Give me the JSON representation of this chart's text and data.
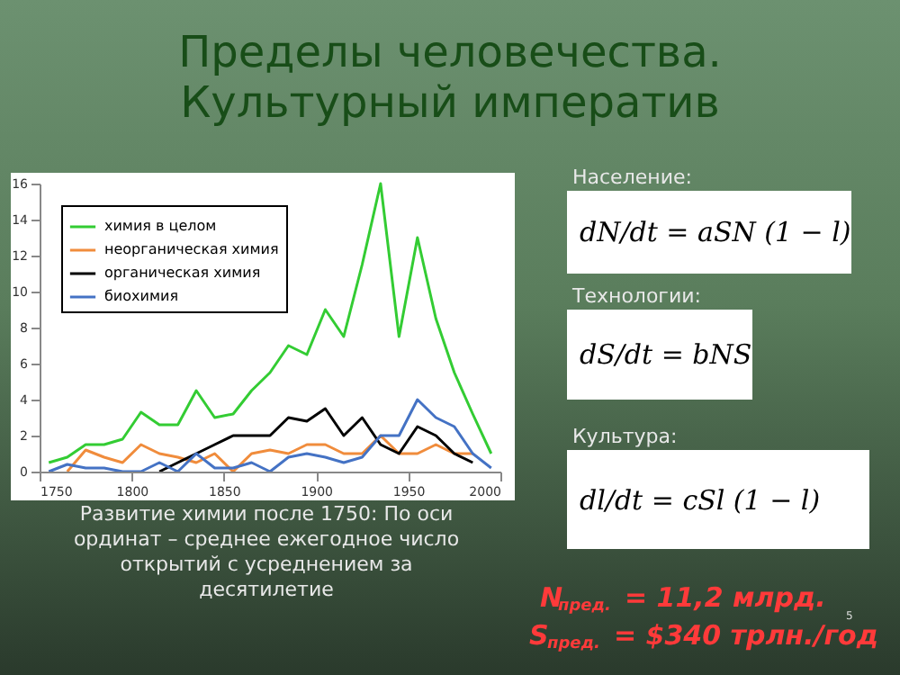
{
  "chart_data": {
    "type": "line",
    "title": "Пределы человечества.\nКультурный императив",
    "x": [
      1755,
      1765,
      1775,
      1785,
      1795,
      1805,
      1815,
      1825,
      1835,
      1845,
      1855,
      1865,
      1875,
      1885,
      1895,
      1905,
      1915,
      1925,
      1935,
      1945,
      1955,
      1965,
      1975,
      1985,
      1995
    ],
    "series": [
      {
        "name": "химия в целом",
        "color": "#33cc33",
        "values": [
          0.5,
          0.8,
          1.5,
          1.5,
          1.8,
          3.3,
          2.6,
          2.6,
          4.5,
          3.0,
          3.2,
          4.5,
          5.5,
          7.0,
          6.5,
          9.0,
          7.5,
          11.5,
          16,
          7.5,
          13,
          8.5,
          5.5,
          3.2,
          1.0
        ]
      },
      {
        "name": "неорганическая химия",
        "color": "#f08c3c",
        "x": [
          1765,
          1775,
          1785,
          1795,
          1805,
          1815,
          1825,
          1835,
          1845,
          1855,
          1865,
          1875,
          1885,
          1895,
          1905,
          1915,
          1925,
          1935,
          1945,
          1955,
          1965,
          1975,
          1985
        ],
        "values": [
          0,
          1.2,
          0.8,
          0.5,
          1.5,
          1.0,
          0.8,
          0.5,
          1.0,
          0.0,
          1.0,
          1.2,
          1.0,
          1.5,
          1.5,
          1.0,
          1.0,
          2.0,
          1.0,
          1.0,
          1.5,
          1.0,
          1.0
        ]
      },
      {
        "name": "органическая химия",
        "color": "#000000",
        "x": [
          1815,
          1825,
          1835,
          1845,
          1855,
          1865,
          1875,
          1885,
          1895,
          1905,
          1915,
          1925,
          1935,
          1945,
          1955,
          1965,
          1975,
          1985
        ],
        "values": [
          0,
          0.5,
          1.0,
          1.5,
          2.0,
          2.0,
          2.0,
          3.0,
          2.8,
          3.5,
          2.0,
          3.0,
          1.5,
          1.0,
          2.5,
          2.0,
          1.0,
          0.5
        ]
      },
      {
        "name": "биохимия",
        "color": "#4472c4",
        "values": [
          0,
          0.4,
          0.2,
          0.2,
          0,
          0,
          0.5,
          0,
          1.0,
          0.2,
          0.2,
          0.5,
          0,
          0.8,
          1.0,
          0.8,
          0.5,
          0.8,
          2.0,
          2.0,
          4.0,
          3.0,
          2.5,
          1.0,
          0.2
        ]
      }
    ],
    "xlim": [
      1750,
      2000
    ],
    "xticks": [
      1750,
      1800,
      1850,
      1900,
      1950,
      2000
    ],
    "ylim": [
      0,
      16
    ],
    "yticks": [
      0,
      2,
      4,
      6,
      8,
      10,
      12,
      14,
      16
    ],
    "grid": false,
    "legend": "top left",
    "marker": "none",
    "line_style": "solid",
    "annotations": [
      "Население:",
      "dN/dt = aSN (1 − l)",
      "Технологии:",
      "dS/dt = bNS",
      "Культура:",
      "dl/dt = cSl (1 − l)",
      "Развитие химии после 1750: По оси\nординат – среднее ежегодное число\nоткрытий с усреднением за\nдесятилетие",
      "N$_{пред.}$ = 11,2 млрд.",
      "S$_{пред.}$ = $340 трлн./год",
      "5"
    ]
  }
}
